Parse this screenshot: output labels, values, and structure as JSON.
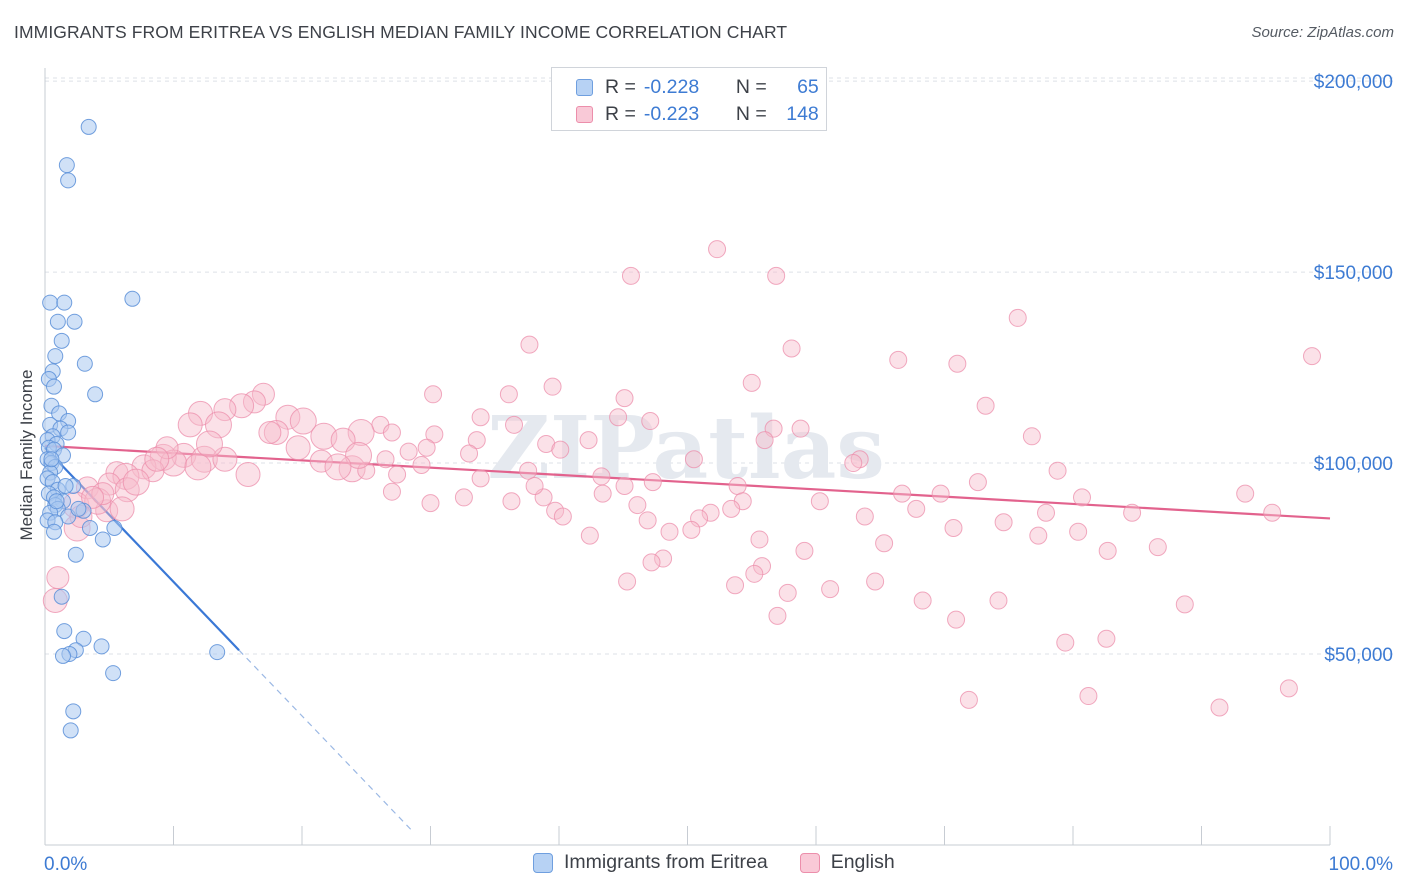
{
  "title": "IMMIGRANTS FROM ERITREA VS ENGLISH MEDIAN FAMILY INCOME CORRELATION CHART",
  "source": "Source: ZipAtlas.com",
  "legend": {
    "rows": [
      {
        "r_label": "R =",
        "r_value": "-0.228",
        "n_label": "N =",
        "n_value": "65",
        "color": "#9ec3ef"
      },
      {
        "r_label": "R =",
        "r_value": "-0.223",
        "n_label": "N =",
        "n_value": "148",
        "color": "#f6b6c9"
      }
    ]
  },
  "bottom_legend": [
    "Immigrants from Eritrea",
    "English"
  ],
  "watermark": "ZIPatlas",
  "chart_data": {
    "type": "scatter",
    "title": "IMMIGRANTS FROM ERITREA VS ENGLISH MEDIAN FAMILY INCOME CORRELATION CHART",
    "xlabel": "",
    "ylabel": "Median Family Income",
    "xlim": [
      0,
      100
    ],
    "ylim": [
      0,
      205000
    ],
    "x_tick_labels": [
      "0.0%",
      "100.0%"
    ],
    "y_ticks": [
      50000,
      100000,
      150000,
      200000
    ],
    "y_tick_labels": [
      "$50,000",
      "$100,000",
      "$150,000",
      "$200,000"
    ],
    "grid": "horizontal dashed",
    "legend_position": "top-center",
    "colors": {
      "eritrea": "#3a78d6",
      "english": "#e2628d",
      "eritrea_fill": "#a9c9f0",
      "english_fill": "#f6bccd"
    },
    "series": [
      {
        "name": "Immigrants from Eritrea",
        "R": -0.228,
        "N": 65,
        "trend": {
          "x0": 0,
          "y0": 104000,
          "x1": 15.1,
          "y1": 51000,
          "dash_x_end": 28.5
        },
        "points": [
          [
            3.4,
            188000
          ],
          [
            1.7,
            178000
          ],
          [
            1.8,
            174000
          ],
          [
            6.8,
            143000
          ],
          [
            0.4,
            142000
          ],
          [
            1.5,
            142000
          ],
          [
            1.0,
            137000
          ],
          [
            2.3,
            137000
          ],
          [
            1.3,
            132000
          ],
          [
            0.8,
            128000
          ],
          [
            3.1,
            126000
          ],
          [
            0.6,
            124000
          ],
          [
            0.3,
            122000
          ],
          [
            0.7,
            120000
          ],
          [
            3.9,
            118000
          ],
          [
            0.5,
            115000
          ],
          [
            1.1,
            113000
          ],
          [
            1.8,
            111000
          ],
          [
            0.4,
            110000
          ],
          [
            1.2,
            109000
          ],
          [
            1.8,
            108000
          ],
          [
            0.6,
            107000
          ],
          [
            0.2,
            106000
          ],
          [
            0.9,
            105000
          ],
          [
            0.3,
            104000
          ],
          [
            0.7,
            103500
          ],
          [
            1.4,
            102000
          ],
          [
            0.2,
            101000
          ],
          [
            0.5,
            100000
          ],
          [
            0.8,
            99000
          ],
          [
            0.4,
            97500
          ],
          [
            0.2,
            96000
          ],
          [
            0.6,
            95000
          ],
          [
            2.2,
            94000
          ],
          [
            1.0,
            93000
          ],
          [
            0.3,
            92000
          ],
          [
            0.7,
            91000
          ],
          [
            1.4,
            90000
          ],
          [
            0.8,
            89000
          ],
          [
            1.0,
            88000
          ],
          [
            3.0,
            87500
          ],
          [
            0.4,
            87000
          ],
          [
            1.8,
            86000
          ],
          [
            0.2,
            85000
          ],
          [
            0.8,
            84500
          ],
          [
            3.5,
            83000
          ],
          [
            5.4,
            83000
          ],
          [
            0.7,
            82000
          ],
          [
            4.5,
            80000
          ],
          [
            2.4,
            76000
          ],
          [
            1.3,
            65000
          ],
          [
            1.5,
            56000
          ],
          [
            3.0,
            54000
          ],
          [
            4.4,
            52000
          ],
          [
            2.4,
            51000
          ],
          [
            1.9,
            50000
          ],
          [
            1.4,
            49500
          ],
          [
            13.4,
            50500
          ],
          [
            5.3,
            45000
          ],
          [
            2.2,
            35000
          ],
          [
            2.0,
            30000
          ],
          [
            0.5,
            101000
          ],
          [
            1.6,
            94000
          ],
          [
            0.9,
            90000
          ],
          [
            2.6,
            88000
          ]
        ]
      },
      {
        "name": "English",
        "R": -0.223,
        "N": 148,
        "trend": {
          "x0": 0,
          "y0": 104500,
          "x1": 100,
          "y1": 85500
        },
        "points": [
          [
            52.3,
            156000
          ],
          [
            45.6,
            149000
          ],
          [
            56.9,
            149000
          ],
          [
            75.7,
            138000
          ],
          [
            37.7,
            131000
          ],
          [
            58.1,
            130000
          ],
          [
            98.6,
            128000
          ],
          [
            66.4,
            127000
          ],
          [
            71.0,
            126000
          ],
          [
            39.5,
            120000
          ],
          [
            55.0,
            121000
          ],
          [
            30.2,
            118000
          ],
          [
            17.0,
            118000
          ],
          [
            36.1,
            118000
          ],
          [
            45.1,
            117000
          ],
          [
            16.3,
            116000
          ],
          [
            15.3,
            115000
          ],
          [
            73.2,
            115000
          ],
          [
            14.0,
            114000
          ],
          [
            12.1,
            113000
          ],
          [
            44.6,
            112000
          ],
          [
            33.9,
            112000
          ],
          [
            18.9,
            112000
          ],
          [
            20.1,
            111000
          ],
          [
            47.1,
            111000
          ],
          [
            11.3,
            110000
          ],
          [
            13.5,
            110000
          ],
          [
            36.5,
            110000
          ],
          [
            26.1,
            110000
          ],
          [
            56.7,
            109000
          ],
          [
            58.8,
            109000
          ],
          [
            18.0,
            108000
          ],
          [
            24.6,
            108000
          ],
          [
            27.0,
            108000
          ],
          [
            30.3,
            107500
          ],
          [
            21.7,
            107000
          ],
          [
            76.8,
            107000
          ],
          [
            23.2,
            106000
          ],
          [
            33.6,
            106000
          ],
          [
            42.3,
            106000
          ],
          [
            56.0,
            106000
          ],
          [
            39.0,
            105000
          ],
          [
            29.7,
            104000
          ],
          [
            40.1,
            103500
          ],
          [
            28.3,
            103000
          ],
          [
            33.0,
            102500
          ],
          [
            10.8,
            102000
          ],
          [
            9.2,
            101500
          ],
          [
            50.5,
            101000
          ],
          [
            63.4,
            101000
          ],
          [
            12.4,
            101000
          ],
          [
            21.5,
            100500
          ],
          [
            62.9,
            100000
          ],
          [
            10.0,
            100000
          ],
          [
            29.3,
            99500
          ],
          [
            7.7,
            99000
          ],
          [
            23.9,
            98500
          ],
          [
            8.4,
            98000
          ],
          [
            25.0,
            98000
          ],
          [
            37.6,
            98000
          ],
          [
            5.6,
            97500
          ],
          [
            27.4,
            97000
          ],
          [
            6.3,
            96500
          ],
          [
            43.3,
            96500
          ],
          [
            33.9,
            96000
          ],
          [
            47.3,
            95000
          ],
          [
            5.0,
            94500
          ],
          [
            53.9,
            94000
          ],
          [
            45.1,
            94000
          ],
          [
            3.3,
            93500
          ],
          [
            6.4,
            93000
          ],
          [
            27.0,
            92500
          ],
          [
            69.7,
            92000
          ],
          [
            43.4,
            92000
          ],
          [
            38.8,
            91000
          ],
          [
            32.6,
            91000
          ],
          [
            80.7,
            91000
          ],
          [
            54.3,
            90000
          ],
          [
            36.3,
            90000
          ],
          [
            30.0,
            89500
          ],
          [
            2.4,
            89000
          ],
          [
            46.1,
            89000
          ],
          [
            53.4,
            88000
          ],
          [
            67.8,
            88000
          ],
          [
            4.8,
            87500
          ],
          [
            39.7,
            87500
          ],
          [
            51.8,
            87000
          ],
          [
            77.9,
            87000
          ],
          [
            84.6,
            87000
          ],
          [
            63.8,
            86000
          ],
          [
            40.3,
            86000
          ],
          [
            50.9,
            85500
          ],
          [
            46.9,
            85000
          ],
          [
            74.6,
            84500
          ],
          [
            70.7,
            83000
          ],
          [
            2.5,
            83000
          ],
          [
            50.3,
            82500
          ],
          [
            48.6,
            82000
          ],
          [
            80.4,
            82000
          ],
          [
            42.4,
            81000
          ],
          [
            77.3,
            81000
          ],
          [
            55.6,
            80000
          ],
          [
            65.3,
            79000
          ],
          [
            86.6,
            78000
          ],
          [
            82.7,
            77000
          ],
          [
            59.1,
            77000
          ],
          [
            48.1,
            75000
          ],
          [
            47.2,
            74000
          ],
          [
            55.8,
            73000
          ],
          [
            55.2,
            71000
          ],
          [
            64.6,
            69000
          ],
          [
            45.3,
            69000
          ],
          [
            53.7,
            68000
          ],
          [
            61.1,
            67000
          ],
          [
            57.8,
            66000
          ],
          [
            68.3,
            64000
          ],
          [
            74.2,
            64000
          ],
          [
            1.0,
            70000
          ],
          [
            0.8,
            64000
          ],
          [
            88.7,
            63000
          ],
          [
            57.0,
            60000
          ],
          [
            70.9,
            59000
          ],
          [
            82.6,
            54000
          ],
          [
            79.4,
            53000
          ],
          [
            81.2,
            39000
          ],
          [
            71.9,
            38000
          ],
          [
            96.8,
            41000
          ],
          [
            91.4,
            36000
          ],
          [
            4.1,
            90000
          ],
          [
            2.8,
            86000
          ],
          [
            14.0,
            101000
          ],
          [
            7.1,
            95000
          ],
          [
            4.5,
            92000
          ],
          [
            6.0,
            88000
          ],
          [
            24.4,
            102000
          ],
          [
            38.1,
            94000
          ],
          [
            15.8,
            97000
          ],
          [
            11.9,
            99000
          ],
          [
            3.7,
            91000
          ],
          [
            19.7,
            104000
          ],
          [
            22.8,
            99000
          ],
          [
            9.5,
            104000
          ],
          [
            8.7,
            101000
          ],
          [
            12.8,
            105000
          ],
          [
            17.5,
            108000
          ],
          [
            26.5,
            101000
          ],
          [
            60.3,
            90000
          ],
          [
            66.7,
            92000
          ],
          [
            72.6,
            95000
          ],
          [
            78.8,
            98000
          ],
          [
            93.4,
            92000
          ],
          [
            95.5,
            87000
          ]
        ]
      }
    ]
  }
}
